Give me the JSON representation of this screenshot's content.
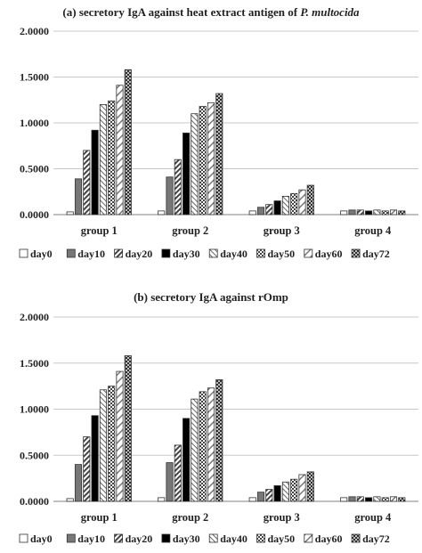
{
  "chart_data": [
    {
      "type": "bar",
      "title_main": "(a) secretory IgA against heat extract antigen of ",
      "title_italic": "P. multocida",
      "categories": [
        "group 1",
        "group 2",
        "group 3",
        "group 4"
      ],
      "series": [
        {
          "name": "day0",
          "values": [
            0.03,
            0.04,
            0.04,
            0.04
          ]
        },
        {
          "name": "day10",
          "values": [
            0.39,
            0.41,
            0.08,
            0.05
          ]
        },
        {
          "name": "day20",
          "values": [
            0.7,
            0.6,
            0.11,
            0.05
          ]
        },
        {
          "name": "day30",
          "values": [
            0.92,
            0.89,
            0.15,
            0.04
          ]
        },
        {
          "name": "day40",
          "values": [
            1.2,
            1.1,
            0.2,
            0.05
          ]
        },
        {
          "name": "day50",
          "values": [
            1.24,
            1.18,
            0.23,
            0.04
          ]
        },
        {
          "name": "day60",
          "values": [
            1.41,
            1.22,
            0.27,
            0.05
          ]
        },
        {
          "name": "day72",
          "values": [
            1.58,
            1.32,
            0.32,
            0.04
          ]
        }
      ],
      "yticks": [
        "0.0000",
        "0.5000",
        "1.0000",
        "1.5000",
        "2.0000"
      ],
      "ylim": [
        0,
        2
      ],
      "grid": true,
      "legend": "bottom"
    },
    {
      "type": "bar",
      "title_main": "(b) secretory IgA against rOmp",
      "title_italic": "",
      "categories": [
        "group 1",
        "group 2",
        "group 3",
        "group 4"
      ],
      "series": [
        {
          "name": "day0",
          "values": [
            0.03,
            0.04,
            0.04,
            0.04
          ]
        },
        {
          "name": "day10",
          "values": [
            0.4,
            0.42,
            0.1,
            0.05
          ]
        },
        {
          "name": "day20",
          "values": [
            0.7,
            0.61,
            0.13,
            0.05
          ]
        },
        {
          "name": "day30",
          "values": [
            0.93,
            0.9,
            0.17,
            0.04
          ]
        },
        {
          "name": "day40",
          "values": [
            1.21,
            1.11,
            0.21,
            0.05
          ]
        },
        {
          "name": "day50",
          "values": [
            1.25,
            1.19,
            0.24,
            0.04
          ]
        },
        {
          "name": "day60",
          "values": [
            1.41,
            1.23,
            0.29,
            0.05
          ]
        },
        {
          "name": "day72",
          "values": [
            1.58,
            1.32,
            0.32,
            0.04
          ]
        }
      ],
      "yticks": [
        "0.0000",
        "0.5000",
        "1.0000",
        "1.5000",
        "2.0000"
      ],
      "ylim": [
        0,
        2
      ],
      "grid": true,
      "legend": "bottom"
    }
  ],
  "series_fills": [
    "empty",
    "dark-gray",
    "diagonal-stripes",
    "black",
    "diagonal-light",
    "checker",
    "diagonal-wide",
    "cross-hatch"
  ]
}
